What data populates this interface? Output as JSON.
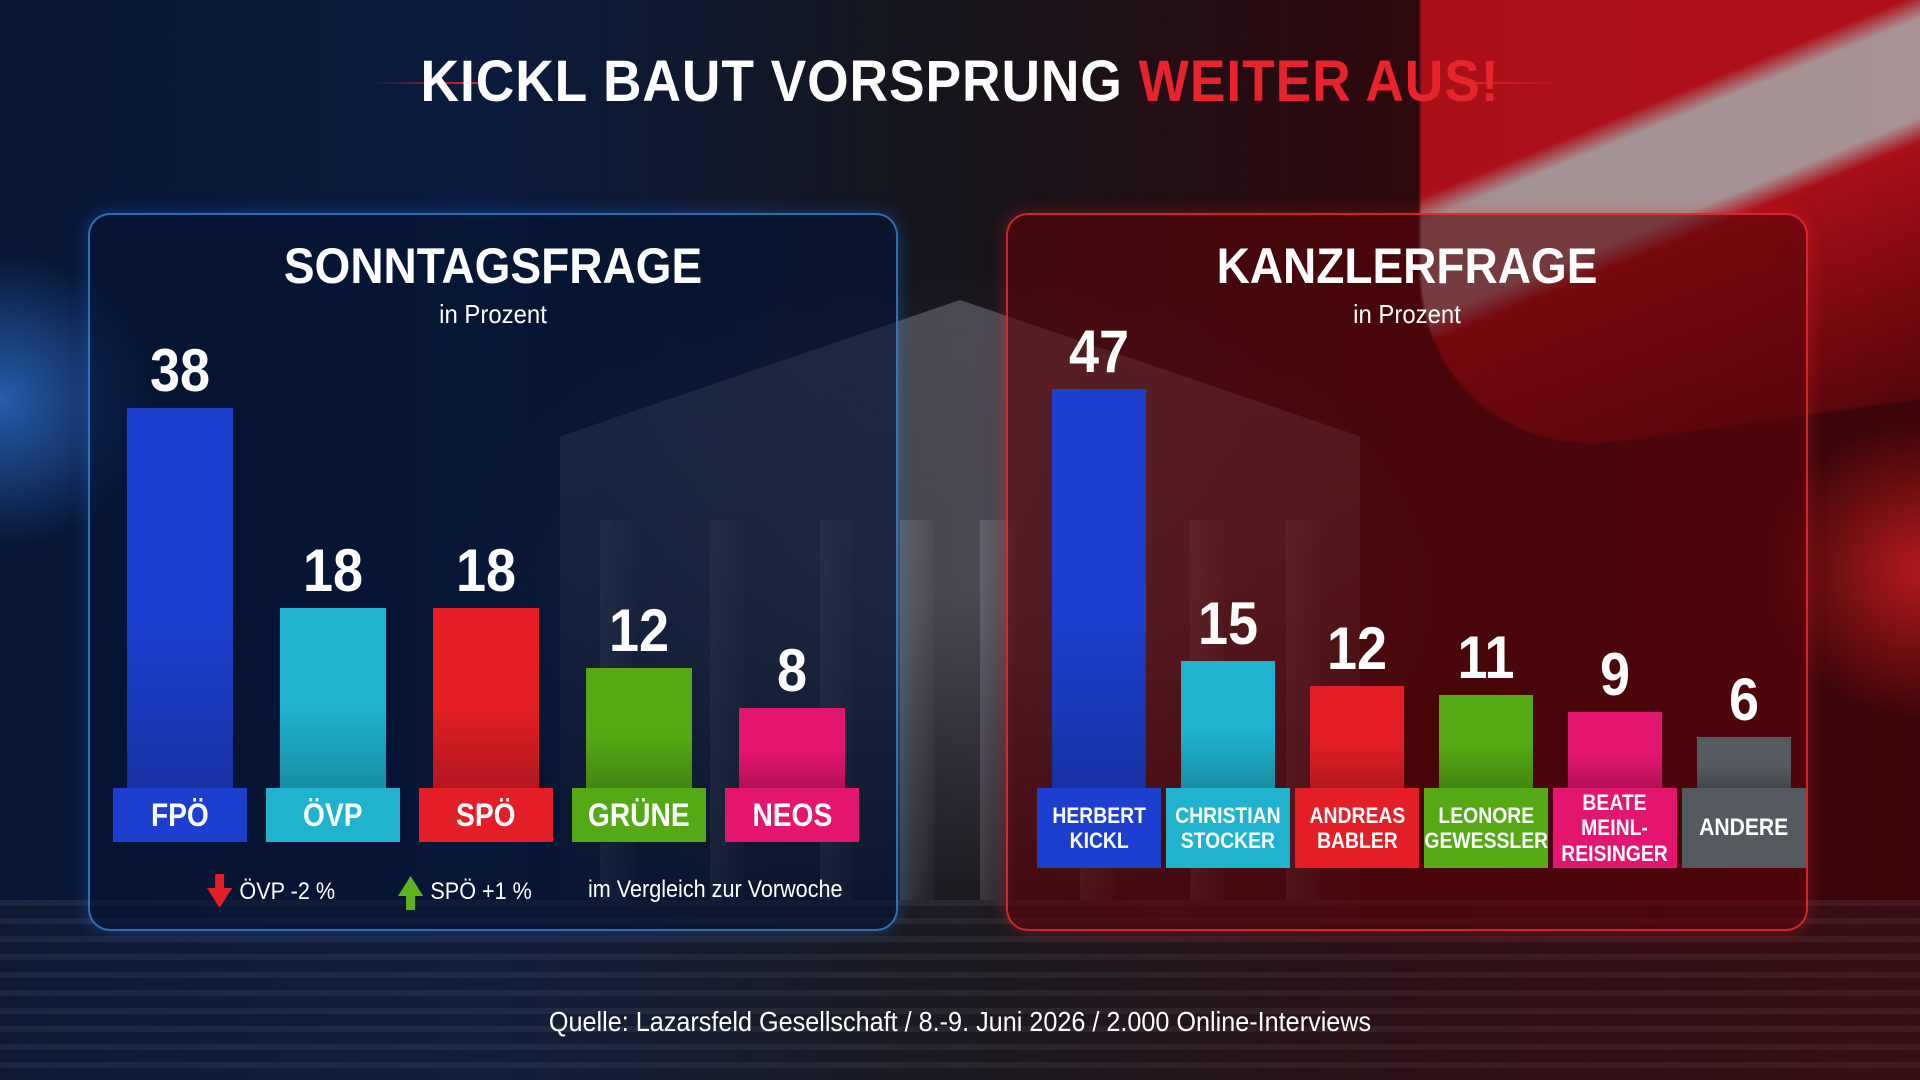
{
  "headline": {
    "main": "KICKL BAUT VORSPRUNG",
    "accent": "WEITER AUS!"
  },
  "colors": {
    "fpo": "#1d3fd0",
    "ovp": "#1fb3cf",
    "spo": "#e31e26",
    "grune": "#55a915",
    "neos": "#e3156f",
    "andere": "#555a60",
    "accent": "#e8232b"
  },
  "chart_data": [
    {
      "type": "bar",
      "title": "SONNTAGSFRAGE",
      "subtitle": "in Prozent",
      "categories": [
        "FPÖ",
        "ÖVP",
        "SPÖ",
        "GRÜNE",
        "NEOS"
      ],
      "values": [
        38,
        18,
        18,
        12,
        8
      ],
      "colors": [
        "#1d3fd0",
        "#1fb3cf",
        "#e31e26",
        "#55a915",
        "#e3156f"
      ],
      "legend": [
        {
          "icon": "arrow-down-icon",
          "text": "ÖVP -2 %"
        },
        {
          "icon": "arrow-up-icon",
          "text": "SPÖ +1 %"
        },
        {
          "icon": "",
          "text": "im Vergleich zur Vorwoche"
        }
      ]
    },
    {
      "type": "bar",
      "title": "KANZLERFRAGE",
      "subtitle": "in Prozent",
      "categories": [
        "HERBERT\nKICKL",
        "CHRISTIAN\nSTOCKER",
        "ANDREAS\nBABLER",
        "LEONORE\nGEWESSLER",
        "BEATE\nMEINL-REISINGER",
        "ANDERE"
      ],
      "values": [
        47,
        15,
        12,
        11,
        9,
        6
      ],
      "colors": [
        "#1d3fd0",
        "#1fb3cf",
        "#e31e26",
        "#55a915",
        "#e3156f",
        "#555a60"
      ]
    }
  ],
  "source": "Quelle: Lazarsfeld Gesellschaft / 8.-9. Juni 2026 / 2.000 Online-Interviews"
}
